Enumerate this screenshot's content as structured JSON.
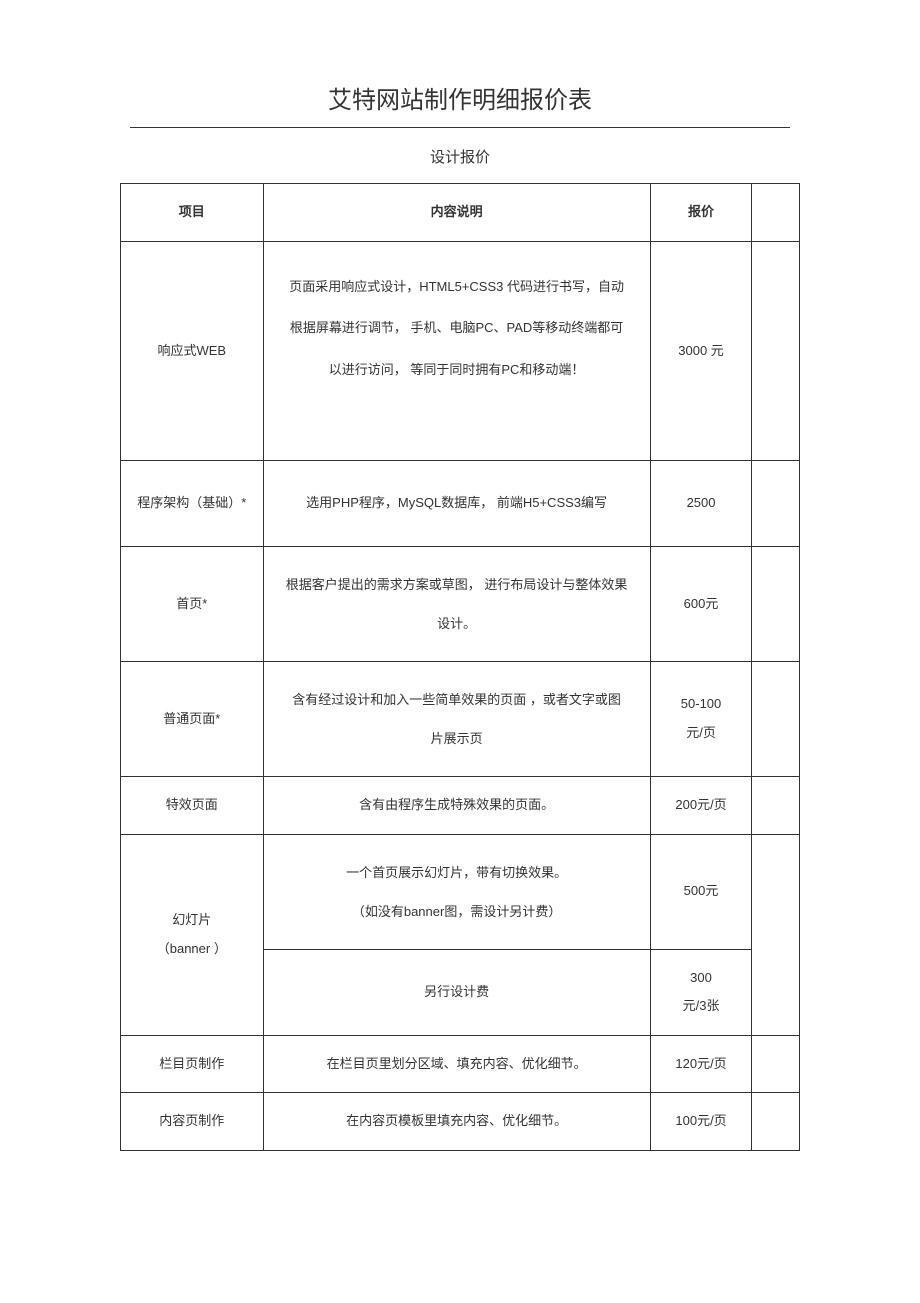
{
  "title": "艾特网站制作明细报价表",
  "subtitle": "设计报价",
  "headers": {
    "col1": "项目",
    "col2": "内容说明",
    "col3": "报价"
  },
  "rows": {
    "r1": {
      "item": "响应式WEB",
      "desc": "页面采用响应式设计，HTML5+CSS3 代码进行书写，自动\n根据屏幕进行调节， 手机、电脑PC、PAD等移动终端都可\n以进行访问， 等同于同时拥有PC和移动端！",
      "price": "3000 元"
    },
    "r2": {
      "item": "程序架构（基础）*",
      "desc": "选用PHP程序，MySQL数据库， 前端H5+CSS3编写",
      "price": "2500"
    },
    "r3": {
      "item": "首页*",
      "desc": "根据客户提出的需求方案或草图，   进行布局设计与整体效果\n设计。",
      "price": "600元"
    },
    "r4": {
      "item": "普通页面*",
      "desc": "含有经过设计和加入一些简单效果的页面     ，或者文字或图\n片展示页",
      "price": "50-100\n元/页"
    },
    "r5": {
      "item": "特效页面",
      "desc": "含有由程序生成特殊效果的页面。",
      "price": "200元/页"
    },
    "r6": {
      "item": "幻灯片\n（banner ）",
      "desc1": "一个首页展示幻灯片，带有切换效果。\n（如没有banner图，需设计另计费）",
      "price1": "500元",
      "desc2": "另行设计费",
      "price2": "300\n元/3张"
    },
    "r7": {
      "item": "栏目页制作",
      "desc": "在栏目页里划分区域、填充内容、优化细节。",
      "price": "120元/页"
    },
    "r8": {
      "item": "内容页制作",
      "desc": "在内容页模板里填充内容、优化细节。",
      "price": "100元/页"
    }
  }
}
